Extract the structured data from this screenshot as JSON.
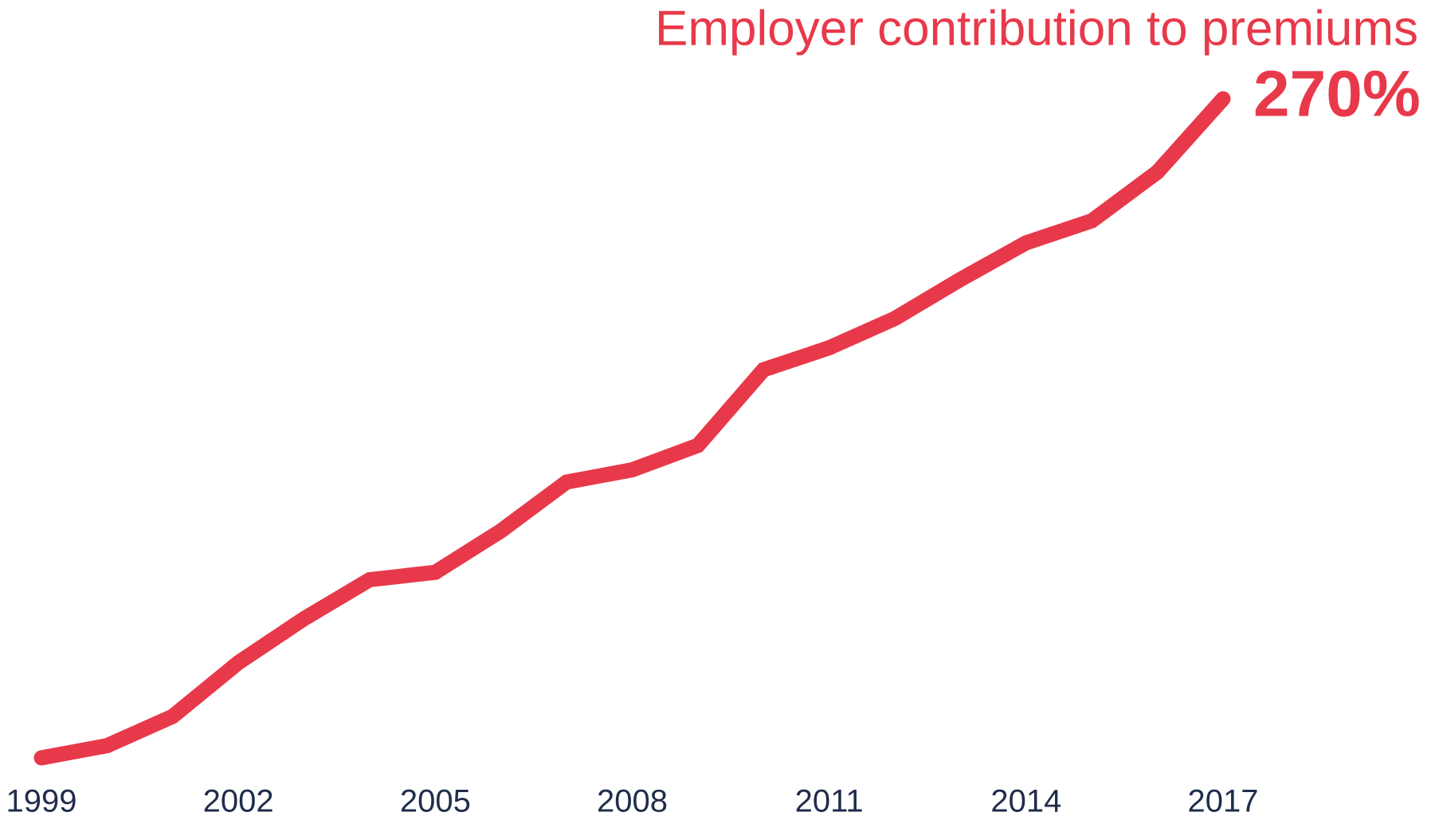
{
  "chart_data": {
    "type": "line",
    "title": "Employer contribution to premiums",
    "x": [
      1999,
      2000,
      2001,
      2002,
      2003,
      2004,
      2005,
      2006,
      2007,
      2008,
      2009,
      2010,
      2011,
      2012,
      2013,
      2014,
      2015,
      2016,
      2017
    ],
    "series": [
      {
        "name": "Employer contribution to premiums",
        "color": "#e8394a",
        "values": [
          0,
          5,
          17,
          39,
          57,
          73,
          76,
          93,
          113,
          118,
          128,
          159,
          168,
          180,
          196,
          211,
          220,
          240,
          270
        ],
        "value_labels": [
          null,
          null,
          null,
          null,
          null,
          null,
          null,
          null,
          null,
          null,
          null,
          null,
          null,
          null,
          null,
          null,
          null,
          null,
          "270%"
        ]
      }
    ],
    "xlim": [
      1999,
      2017
    ],
    "xticks": [
      1999,
      2002,
      2005,
      2008,
      2011,
      2014,
      2017
    ],
    "ylim": [
      0,
      270
    ],
    "grid": false
  }
}
